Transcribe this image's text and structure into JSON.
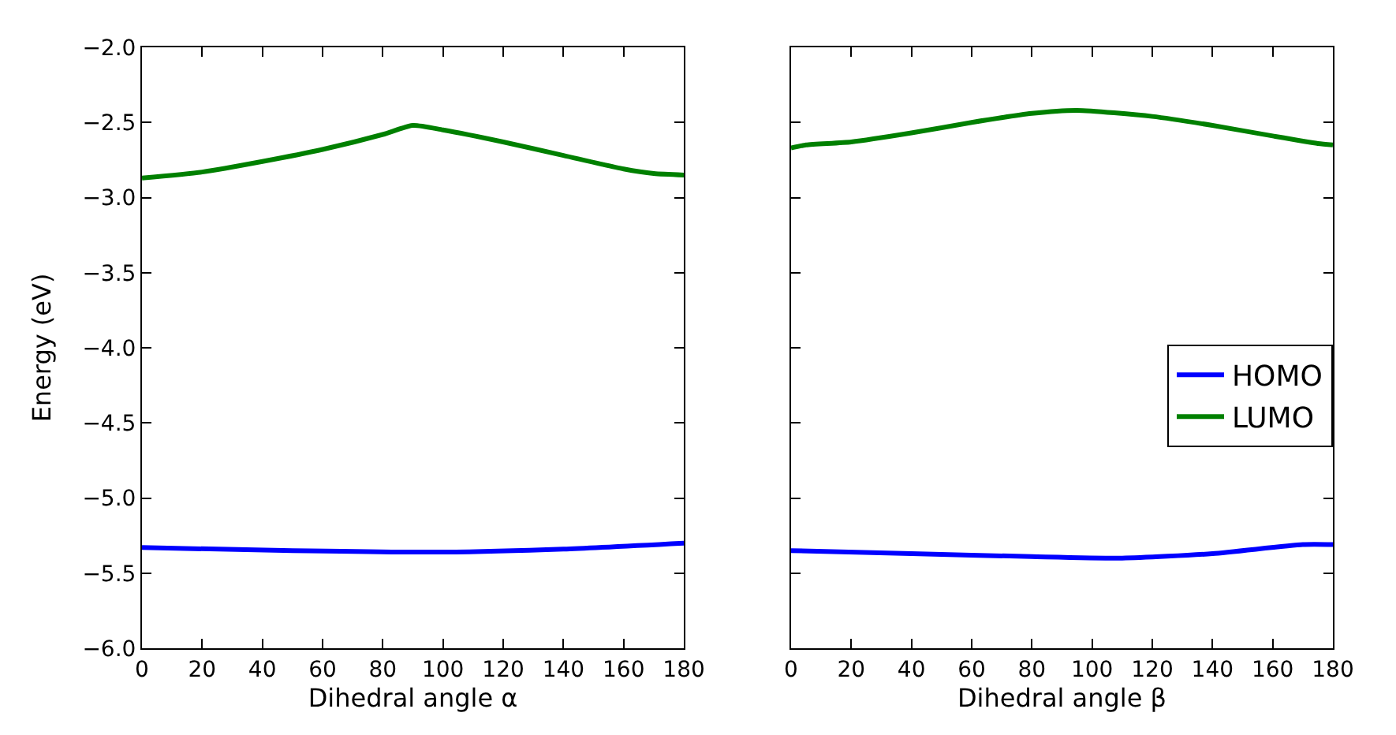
{
  "chart_data": [
    {
      "type": "line",
      "xlabel": "Dihedral angle α",
      "ylabel": "Energy (eV)",
      "xlim": [
        0,
        180
      ],
      "ylim": [
        -6,
        -2
      ],
      "xticks": [
        0,
        20,
        40,
        60,
        80,
        100,
        120,
        140,
        160,
        180
      ],
      "yticks": [
        {
          "value": -6,
          "label": "−6.0"
        },
        {
          "value": -5.5,
          "label": "−5.5"
        },
        {
          "value": -5,
          "label": "−5.0"
        },
        {
          "value": -4.5,
          "label": "−4.5"
        },
        {
          "value": -4,
          "label": "−4.0"
        },
        {
          "value": -3.5,
          "label": "−3.5"
        },
        {
          "value": -3,
          "label": "−3.0"
        },
        {
          "value": -2.5,
          "label": "−2.5"
        },
        {
          "value": -2,
          "label": "−2.0"
        }
      ],
      "series": [
        {
          "color": "#0000ff",
          "x": [
            0,
            50,
            100,
            140,
            180
          ],
          "values": [
            -5.33,
            -5.35,
            -5.36,
            -5.34,
            -5.3
          ]
        },
        {
          "color": "#008000",
          "x": [
            0,
            20,
            40,
            60,
            80,
            90,
            100,
            120,
            140,
            160,
            170,
            180
          ],
          "values": [
            -2.87,
            -2.83,
            -2.76,
            -2.68,
            -2.58,
            -2.52,
            -2.55,
            -2.63,
            -2.72,
            -2.81,
            -2.84,
            -2.85
          ]
        }
      ]
    },
    {
      "type": "line",
      "xlabel": "Dihedral angle β",
      "xlim": [
        0,
        180
      ],
      "ylim": [
        -6,
        -2
      ],
      "xticks": [
        0,
        20,
        40,
        60,
        80,
        100,
        120,
        140,
        160,
        180
      ],
      "yticks": [
        -6,
        -5.5,
        -5,
        -4.5,
        -4,
        -3.5,
        -3,
        -2.5,
        -2
      ],
      "tick_labels": "x",
      "legend": "right",
      "series": [
        {
          "name": "HOMO",
          "color": "#0000ff",
          "x": [
            0,
            40,
            80,
            110,
            140,
            170,
            180
          ],
          "values": [
            -5.35,
            -5.37,
            -5.39,
            -5.4,
            -5.37,
            -5.31,
            -5.31
          ]
        },
        {
          "name": "LUMO",
          "color": "#008000",
          "x": [
            0,
            5,
            20,
            40,
            60,
            80,
            95,
            120,
            140,
            160,
            175,
            180
          ],
          "values": [
            -2.67,
            -2.65,
            -2.63,
            -2.57,
            -2.5,
            -2.44,
            -2.42,
            -2.46,
            -2.52,
            -2.59,
            -2.64,
            -2.65
          ]
        }
      ]
    }
  ]
}
